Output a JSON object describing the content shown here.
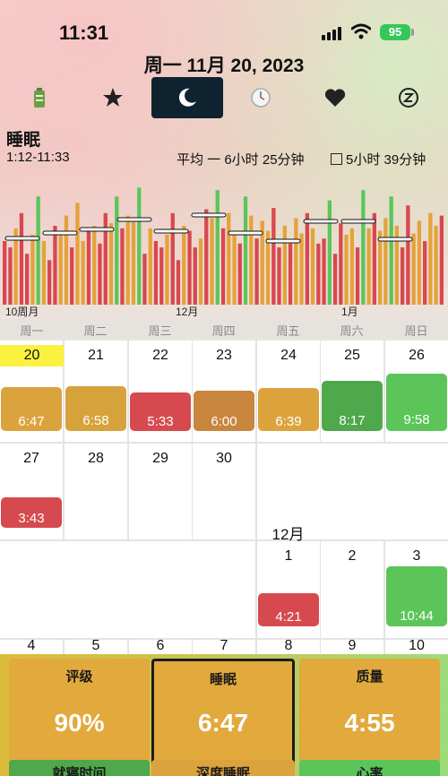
{
  "status": {
    "time": "11:31",
    "battery": "95"
  },
  "header": {
    "date": "周一 11月 20, 2023"
  },
  "tabs": [
    {
      "id": "battery",
      "icon": "battery-icon"
    },
    {
      "id": "favorites",
      "icon": "star-icon"
    },
    {
      "id": "sleep",
      "icon": "moon-icon",
      "active": true
    },
    {
      "id": "timer",
      "icon": "clock-icon"
    },
    {
      "id": "heart",
      "icon": "heart-icon"
    },
    {
      "id": "zzz",
      "icon": "zzz-icon"
    }
  ],
  "sleep_chart": {
    "title": "睡眠",
    "range": "1:12-11:33",
    "avg": "平均 一 6小时 25分钟",
    "alt": "5小时 39分钟",
    "month_labels": [
      "10周月",
      "12月",
      "1月"
    ],
    "weekdays": [
      "周一",
      "周二",
      "周三",
      "周四",
      "周五",
      "周六",
      "周日"
    ]
  },
  "chart_data": {
    "type": "bar",
    "title": "睡眠",
    "x_labels": [
      "10周月",
      "12月",
      "1月"
    ],
    "bar_colors": {
      "red": "#d9474f",
      "orange": "#e5a23a",
      "green": "#5bc55a"
    },
    "values_relative": [
      0.5,
      0.45,
      0.6,
      0.72,
      0.4,
      0.55,
      0.85,
      0.5,
      0.35,
      0.62,
      0.58,
      0.7,
      0.45,
      0.8,
      0.5,
      0.6,
      0.62,
      0.48,
      0.72,
      0.64,
      0.85,
      0.6,
      0.7,
      0.65,
      0.92,
      0.4,
      0.6,
      0.5,
      0.45,
      0.55,
      0.72,
      0.35,
      0.62,
      0.58,
      0.45,
      0.52,
      0.75,
      0.68,
      0.9,
      0.6,
      0.72,
      0.55,
      0.48,
      0.85,
      0.7,
      0.52,
      0.66,
      0.58,
      0.76,
      0.45,
      0.62,
      0.48,
      0.68,
      0.56,
      0.72,
      0.6,
      0.48,
      0.52,
      0.82,
      0.4,
      0.64,
      0.55,
      0.6,
      0.45,
      0.9,
      0.6,
      0.72,
      0.58,
      0.68,
      0.85,
      0.62,
      0.45,
      0.78,
      0.56,
      0.66,
      0.5,
      0.72,
      0.62,
      0.7
    ]
  },
  "calendar": {
    "week1": [
      {
        "day": "20",
        "duration": "6:47",
        "color": "#dba33d",
        "today": true
      },
      {
        "day": "21",
        "duration": "6:58",
        "color": "#d6a23c"
      },
      {
        "day": "22",
        "duration": "5:33",
        "color": "#d64a4f"
      },
      {
        "day": "23",
        "duration": "6:00",
        "color": "#c8853e"
      },
      {
        "day": "24",
        "duration": "6:39",
        "color": "#dca33d"
      },
      {
        "day": "25",
        "duration": "8:17",
        "color": "#4fa84c"
      },
      {
        "day": "26",
        "duration": "9:58",
        "color": "#5bc55a"
      }
    ],
    "week2": [
      {
        "day": "27",
        "duration": "3:43",
        "color": "#d64a4f"
      },
      {
        "day": "28"
      },
      {
        "day": "29"
      },
      {
        "day": "30"
      }
    ],
    "month_label": "12月",
    "week3": [
      {
        "day": "1",
        "duration": "4:21",
        "color": "#d64a4f"
      },
      {
        "day": "2"
      },
      {
        "day": "3",
        "duration": "10:44",
        "color": "#5bc55a"
      }
    ],
    "week4": [
      "4",
      "5",
      "6",
      "7",
      "8",
      "9",
      "10"
    ]
  },
  "summary": {
    "rating": {
      "title": "评级",
      "value": "90%"
    },
    "sleep": {
      "title": "睡眠",
      "value": "6:47"
    },
    "quality": {
      "title": "质量",
      "value": "4:55"
    },
    "bedtime": {
      "title": "就寝时间"
    },
    "deep_sleep": {
      "title": "深度睡眠"
    },
    "heart_rate": {
      "title": "心率"
    }
  }
}
